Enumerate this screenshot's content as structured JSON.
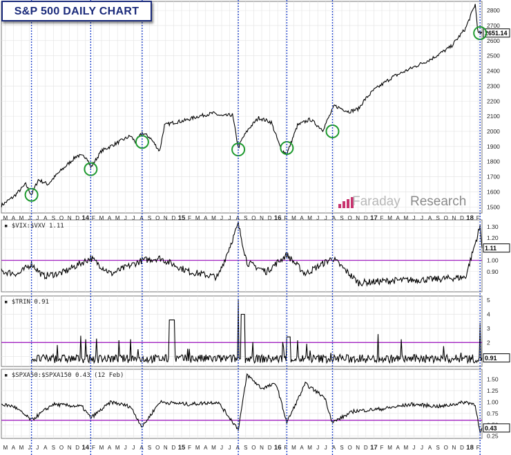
{
  "title": "S&P 500 DAILY CHART",
  "watermark": {
    "part1": "Faraday",
    "part2": "Research"
  },
  "chart_data": [
    {
      "type": "line",
      "panel": "price",
      "title": "S&P 500 DAILY CHART",
      "series": [
        {
          "name": "S&P 500",
          "x": [
            2013.17,
            2013.3,
            2013.42,
            2013.48,
            2013.55,
            2013.65,
            2013.75,
            2013.85,
            2013.95,
            2014.05,
            2014.09,
            2014.2,
            2014.35,
            2014.5,
            2014.55,
            2014.62,
            2014.7,
            2014.8,
            2014.85,
            2014.95,
            2015.05,
            2015.2,
            2015.35,
            2015.45,
            2015.55,
            2015.61,
            2015.65,
            2015.72,
            2015.82,
            2015.95,
            2016.05,
            2016.11,
            2016.22,
            2016.35,
            2016.48,
            2016.6,
            2016.75,
            2016.85,
            2016.9,
            2017.0,
            2017.2,
            2017.4,
            2017.6,
            2017.8,
            2017.95,
            2018.05,
            2018.08,
            2018.12
          ],
          "values": [
            1510,
            1570,
            1650,
            1580,
            1680,
            1650,
            1720,
            1780,
            1840,
            1830,
            1760,
            1870,
            1920,
            1970,
            1930,
            1990,
            1960,
            1870,
            2040,
            2060,
            2070,
            2100,
            2120,
            2100,
            2110,
            1890,
            1950,
            2020,
            2090,
            2060,
            1880,
            1850,
            2040,
            2080,
            2010,
            2170,
            2130,
            2150,
            2200,
            2270,
            2360,
            2420,
            2480,
            2560,
            2680,
            2840,
            2650,
            2651
          ]
        }
      ],
      "last_value_label": "2651.14",
      "yticks": [
        1500,
        1600,
        1700,
        1800,
        1900,
        2000,
        2100,
        2200,
        2300,
        2400,
        2500,
        2600,
        2700,
        2800
      ],
      "ylim": [
        1460,
        2860
      ],
      "circled_dips": [
        [
          2013.48,
          1580
        ],
        [
          2014.09,
          1750
        ],
        [
          2014.62,
          1930
        ],
        [
          2015.61,
          1880
        ],
        [
          2016.11,
          1890
        ],
        [
          2016.58,
          2000
        ],
        [
          2018.1,
          2650
        ]
      ]
    },
    {
      "type": "line",
      "panel": "vix",
      "label": "$VIX:$VXV 1.11",
      "series": [
        {
          "name": "$VIX:$VXV",
          "x": [
            2013.17,
            2013.35,
            2013.48,
            2013.6,
            2013.8,
            2014.09,
            2014.3,
            2014.62,
            2014.8,
            2015.1,
            2015.4,
            2015.61,
            2015.7,
            2015.9,
            2016.11,
            2016.3,
            2016.58,
            2016.85,
            2017.2,
            2017.6,
            2017.95,
            2018.1,
            2018.12
          ],
          "values": [
            0.9,
            0.88,
            0.97,
            0.86,
            0.89,
            1.02,
            0.88,
            1.0,
            1.02,
            0.9,
            0.85,
            1.32,
            0.98,
            0.9,
            1.05,
            0.88,
            1.02,
            0.8,
            0.82,
            0.83,
            0.85,
            1.3,
            1.11
          ]
        }
      ],
      "last_value_label": "1.11",
      "reference_line": 1.0,
      "yticks": [
        0.9,
        1.0,
        1.1,
        1.2,
        1.3
      ],
      "ytick_labels": [
        "0.90",
        "1.00",
        "1.10",
        "1.20",
        "1.30"
      ],
      "ylim": [
        0.72,
        1.36
      ]
    },
    {
      "type": "line",
      "panel": "trin",
      "label": "$TRIN 0.91",
      "series": [
        {
          "name": "$TRIN",
          "x": [
            2013.48,
            2014.09,
            2014.62,
            2014.9,
            2015.61,
            2015.64,
            2016.11,
            2016.58,
            2018.1,
            2018.12
          ],
          "values": [
            1.9,
            2.0,
            1.8,
            3.6,
            5.0,
            4.0,
            2.4,
            2.0,
            3.4,
            0.91
          ]
        }
      ],
      "last_value_label": "0.91",
      "reference_line": 2,
      "yticks": [
        1,
        2,
        3,
        4,
        5
      ],
      "ylim": [
        0.3,
        5.3
      ]
    },
    {
      "type": "line",
      "panel": "breadth",
      "label": "$SPXA50:$SPXA150 0.43 (12 Feb)",
      "series": [
        {
          "name": "$SPXA50:$SPXA150",
          "x": [
            2013.17,
            2013.3,
            2013.48,
            2013.7,
            2014.0,
            2014.09,
            2014.3,
            2014.5,
            2014.62,
            2014.8,
            2015.1,
            2015.4,
            2015.61,
            2015.7,
            2015.85,
            2016.0,
            2016.11,
            2016.3,
            2016.5,
            2016.58,
            2016.8,
            2017.1,
            2017.4,
            2017.7,
            2017.95,
            2018.05,
            2018.1,
            2018.12
          ],
          "values": [
            0.95,
            0.9,
            0.6,
            0.95,
            0.9,
            0.65,
            1.0,
            0.9,
            0.45,
            1.0,
            0.95,
            1.0,
            0.4,
            1.6,
            1.3,
            1.4,
            0.55,
            1.4,
            1.1,
            0.55,
            0.8,
            0.85,
            0.95,
            0.9,
            1.0,
            0.95,
            0.3,
            0.43
          ]
        }
      ],
      "last_value_label": "0.43",
      "reference_line": 0.6,
      "yticks": [
        0.25,
        0.5,
        0.75,
        1.0,
        1.25,
        1.5
      ],
      "ytick_labels": [
        "0.25",
        "0.50",
        "0.75",
        "1.00",
        "1.25",
        "1.50"
      ],
      "ylim": [
        0.2,
        1.72
      ]
    }
  ],
  "x_axis": {
    "months": [
      "M",
      "A",
      "M",
      "J",
      "J",
      "A",
      "S",
      "O",
      "N",
      "D",
      "14",
      "F",
      "M",
      "A",
      "M",
      "J",
      "J",
      "A",
      "S",
      "O",
      "N",
      "D",
      "15",
      "F",
      "M",
      "A",
      "M",
      "J",
      "J",
      "A",
      "S",
      "O",
      "N",
      "D",
      "16",
      "F",
      "M",
      "A",
      "M",
      "J",
      "J",
      "A",
      "S",
      "O",
      "N",
      "D",
      "17",
      "F",
      "M",
      "A",
      "M",
      "J",
      "J",
      "A",
      "S",
      "O",
      "N",
      "D",
      "18",
      "F"
    ],
    "start": 2013.17,
    "end": 2018.12
  },
  "vertical_markers": [
    2013.48,
    2014.09,
    2014.62,
    2015.61,
    2016.11,
    2016.58,
    2018.1
  ],
  "colors": {
    "line": "#000000",
    "reference": "#a020c0",
    "marker": "#2244cc",
    "circle": "#1e9a2e",
    "grid": "#e2e2e2",
    "title": "#1a2a7a",
    "brand": "#c8336e"
  }
}
